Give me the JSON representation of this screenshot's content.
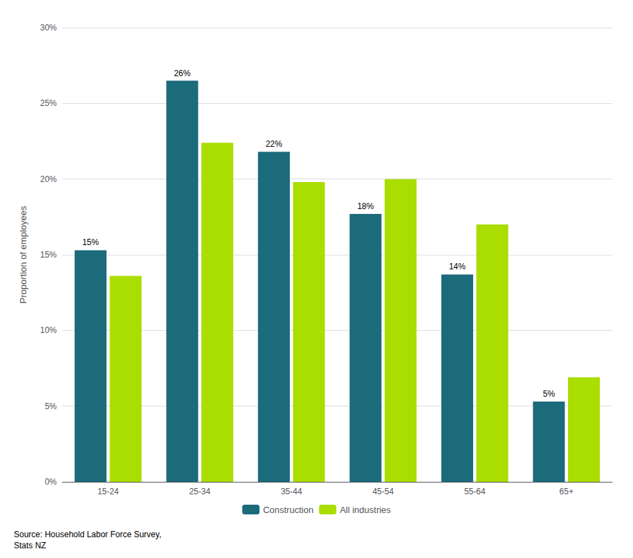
{
  "chart_data": {
    "type": "bar",
    "categories": [
      "15-24",
      "25-34",
      "35-44",
      "45-54",
      "55-64",
      "65+"
    ],
    "series": [
      {
        "name": "Construction",
        "color": "#1b6b7b",
        "values": [
          15.3,
          26.5,
          21.8,
          17.7,
          13.7,
          5.3
        ],
        "data_labels": true,
        "value_labels": [
          "15%",
          "26%",
          "22%",
          "18%",
          "14%",
          "5%"
        ]
      },
      {
        "name": "All industries",
        "color": "#aadd00",
        "values": [
          13.6,
          22.4,
          19.8,
          20.0,
          17.0,
          6.9
        ]
      }
    ],
    "y_label": "Proportion of employees",
    "ylim": [
      0,
      30
    ],
    "yticks": [
      {
        "value": 0,
        "label": "0%"
      },
      {
        "value": 5,
        "label": "5%"
      },
      {
        "value": 10,
        "label": "10%"
      },
      {
        "value": 15,
        "label": "15%"
      },
      {
        "value": 20,
        "label": "20%"
      },
      {
        "value": 25,
        "label": "25%"
      },
      {
        "value": 30,
        "label": "30%"
      }
    ],
    "grid": true,
    "legend": "bottom",
    "annotations": [
      "Source: Household Labor Force Survey,\nStats NZ"
    ]
  }
}
